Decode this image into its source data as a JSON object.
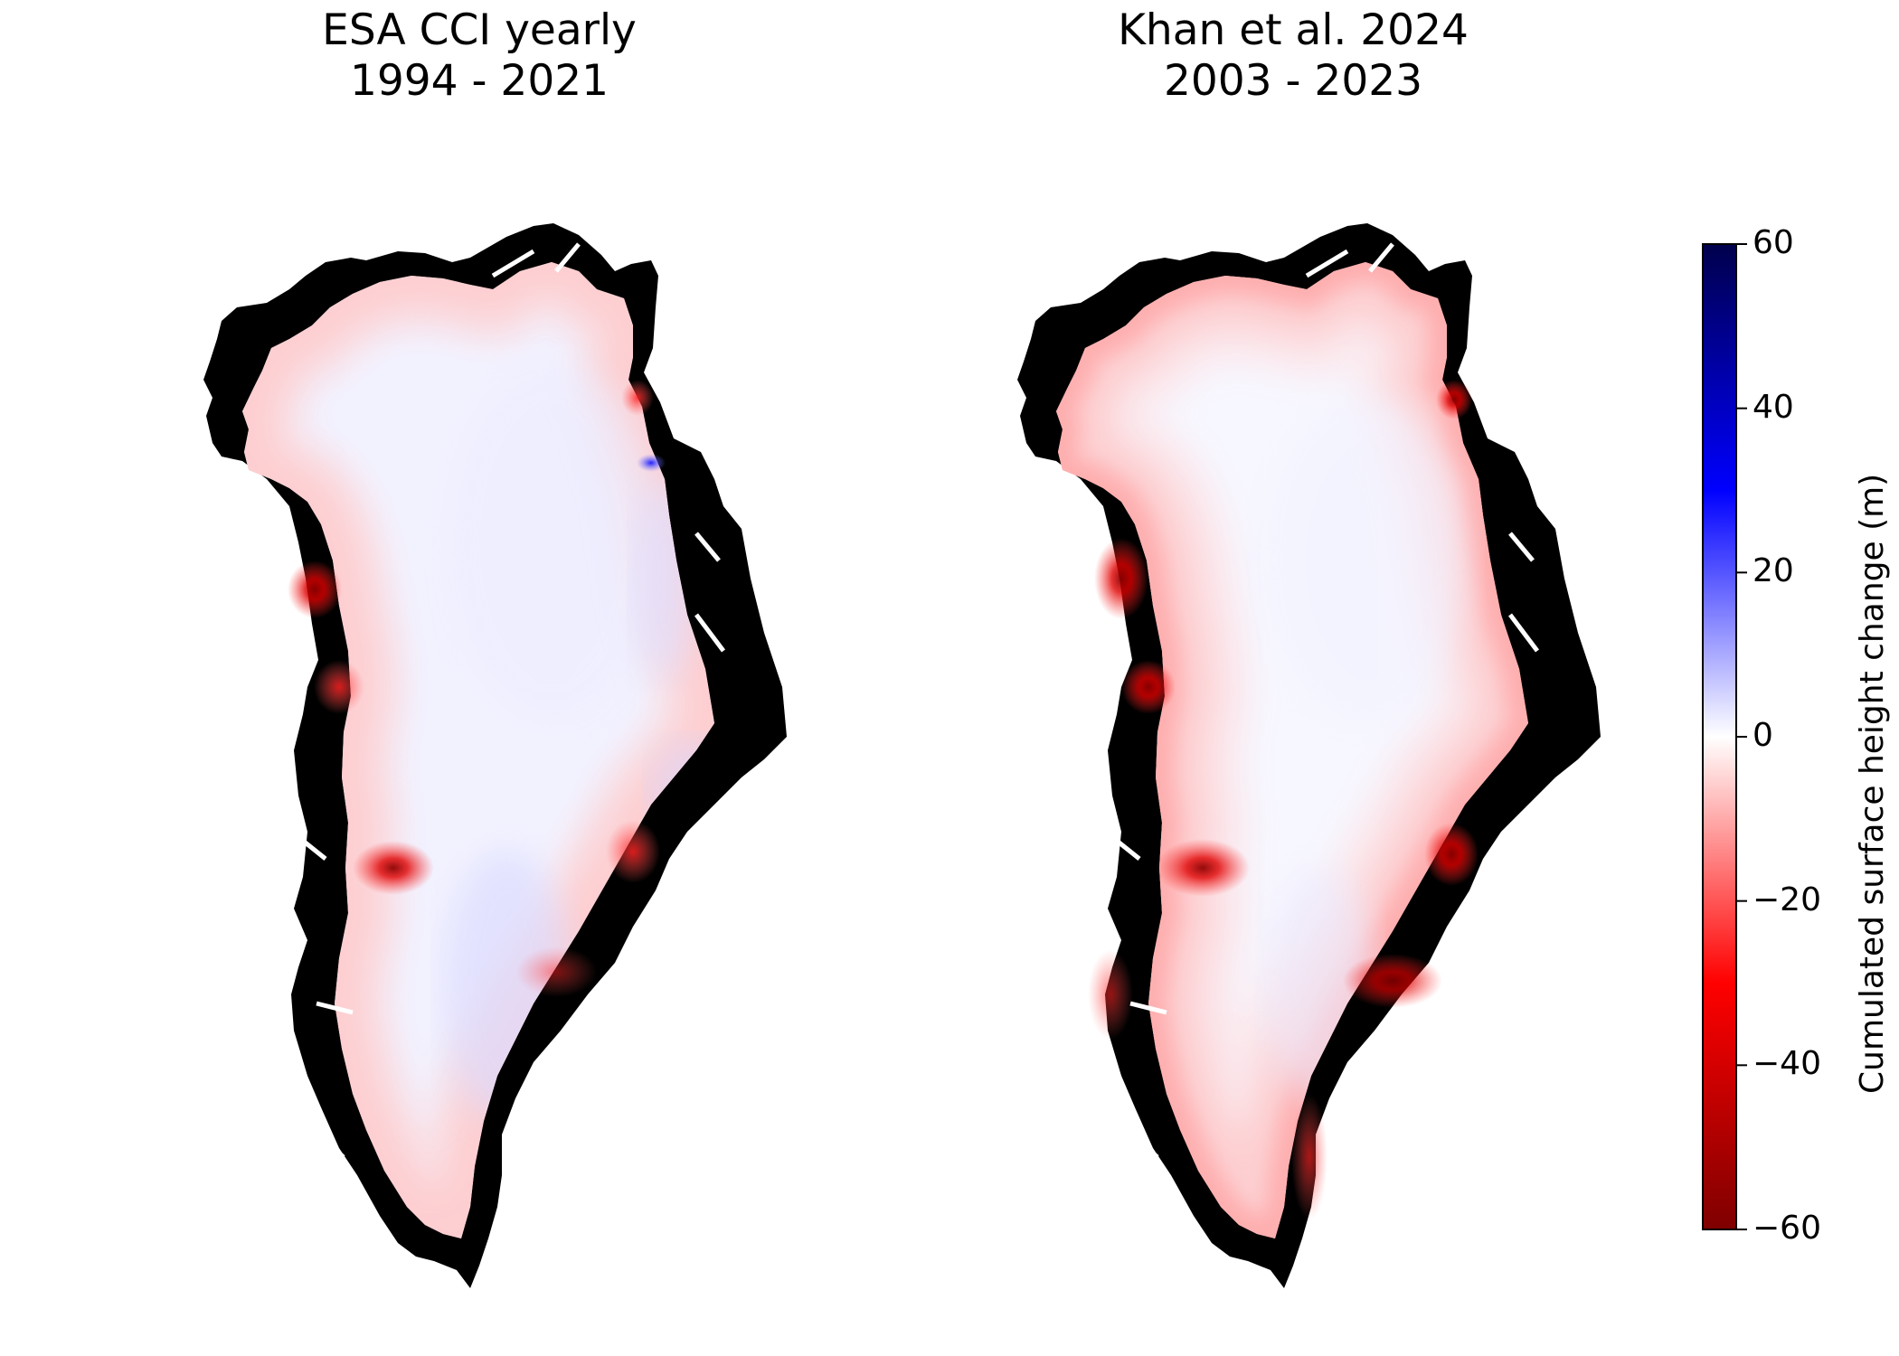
{
  "panels": [
    {
      "title_line1": "ESA CCI yearly",
      "title_line2": "1994 - 2021"
    },
    {
      "title_line1": "Khan et al. 2024",
      "title_line2": "2003 - 2023"
    }
  ],
  "colorbar": {
    "label": "Cumulated surface height change (m)",
    "min": -60,
    "max": 60,
    "ticks": [
      "60",
      "40",
      "20",
      "0",
      "−20",
      "−40",
      "−60"
    ],
    "colormap": "seismic",
    "colors": {
      "min": "#7f0000",
      "low": "#ff0000",
      "mid": "#ffffff",
      "high": "#0000ff",
      "max": "#00004c"
    }
  },
  "map": {
    "ice_free_land_color": "#000000"
  }
}
